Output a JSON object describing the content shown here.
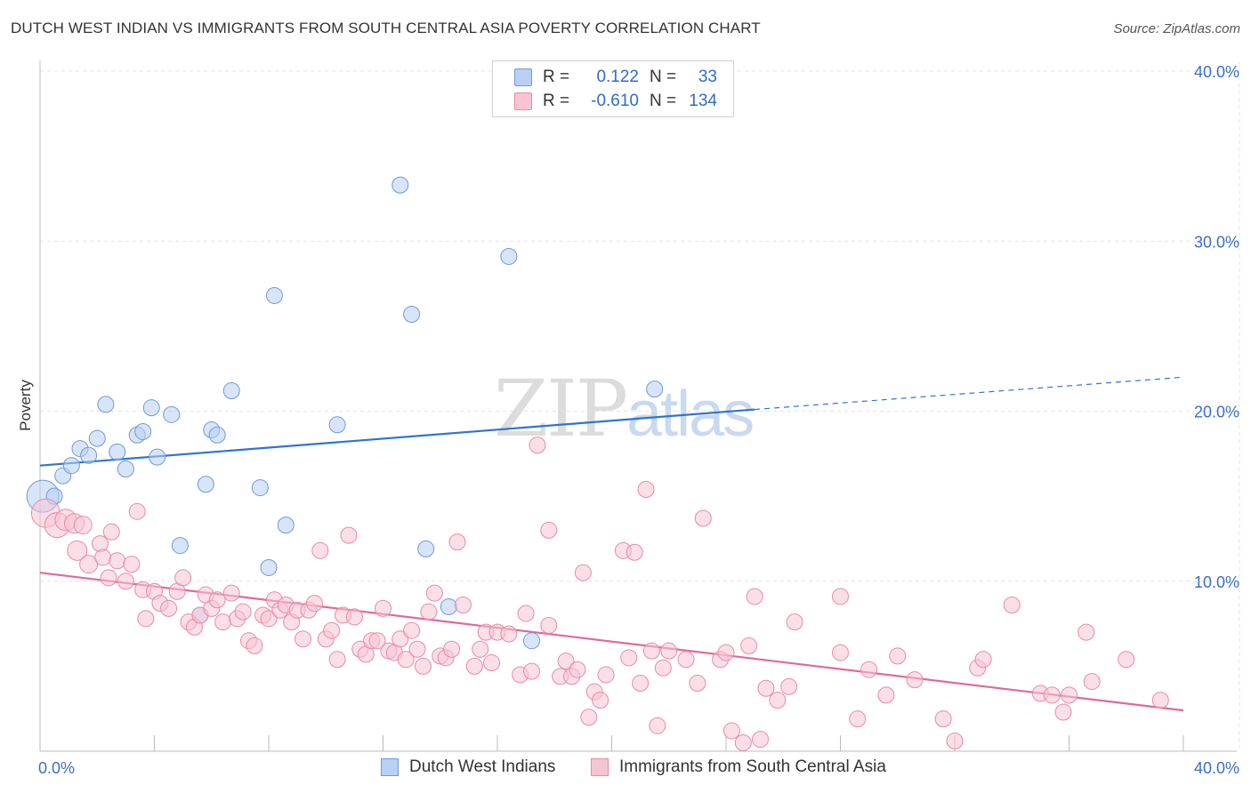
{
  "title": "DUTCH WEST INDIAN VS IMMIGRANTS FROM SOUTH CENTRAL ASIA POVERTY CORRELATION CHART",
  "source": "Source: ZipAtlas.com",
  "watermark": {
    "zip": "ZIP",
    "atlas": "atlas"
  },
  "colors": {
    "blue_fill": "#b8d0f3",
    "blue_stroke": "#6f9ad8",
    "blue_line": "#2f74d0",
    "pink_fill": "#f7c4d3",
    "pink_stroke": "#e88aa7",
    "pink_line": "#e0689a",
    "grid": "#e3e3e3",
    "axis": "#bbbbbb",
    "accent_text": "#2f6cc9"
  },
  "legend": {
    "rows": [
      {
        "series": "blue",
        "r_label": "R =",
        "r_value": "0.122",
        "n_label": "N =",
        "n_value": "33"
      },
      {
        "series": "pink",
        "r_label": "R =",
        "r_value": "-0.610",
        "n_label": "N =",
        "n_value": "134"
      }
    ]
  },
  "bottom_legend": [
    {
      "series": "blue",
      "label": "Dutch West Indians"
    },
    {
      "series": "pink",
      "label": "Immigrants from South Central Asia"
    }
  ],
  "chart_data": {
    "type": "scatter",
    "title": "DUTCH WEST INDIAN VS IMMIGRANTS FROM SOUTH CENTRAL ASIA POVERTY CORRELATION CHART",
    "xlabel": "",
    "ylabel": "Poverty",
    "xlim": [
      0,
      40
    ],
    "ylim": [
      0,
      40
    ],
    "x_tick_labels": [
      {
        "value": 0,
        "label": "0.0%"
      },
      {
        "value": 40,
        "label": "40.0%"
      }
    ],
    "x_minor_ticks": [
      4,
      8,
      12,
      16,
      20,
      24,
      28,
      32,
      36,
      40
    ],
    "y_tick_labels": [
      {
        "value": 10,
        "label": "10.0%"
      },
      {
        "value": 20,
        "label": "20.0%"
      },
      {
        "value": 30,
        "label": "30.0%"
      },
      {
        "value": 40,
        "label": "40.0%"
      }
    ],
    "grid": true,
    "series": [
      {
        "name": "Dutch West Indians",
        "color": "blue",
        "r": 0.122,
        "n": 33,
        "trend": {
          "x0": 0,
          "y0": 16.8,
          "x1": 25,
          "y1": 20.1,
          "dashed_to_x": 40,
          "dashed_to_y": 22.0
        },
        "points": [
          [
            0.1,
            15.0,
            18
          ],
          [
            0.5,
            15.0,
            9
          ],
          [
            0.8,
            16.2,
            9
          ],
          [
            1.1,
            16.8,
            9
          ],
          [
            1.4,
            17.8,
            9
          ],
          [
            1.7,
            17.4,
            9
          ],
          [
            2.0,
            18.4,
            9
          ],
          [
            2.3,
            20.4,
            9
          ],
          [
            2.7,
            17.6,
            9
          ],
          [
            3.0,
            16.6,
            9
          ],
          [
            3.4,
            18.6,
            9
          ],
          [
            3.6,
            18.8,
            9
          ],
          [
            3.9,
            20.2,
            9
          ],
          [
            4.1,
            17.3,
            9
          ],
          [
            4.6,
            19.8,
            9
          ],
          [
            4.9,
            12.1,
            9
          ],
          [
            5.6,
            8.0,
            9
          ],
          [
            5.8,
            15.7,
            9
          ],
          [
            6.0,
            18.9,
            9
          ],
          [
            6.2,
            18.6,
            9
          ],
          [
            6.7,
            21.2,
            9
          ],
          [
            7.7,
            15.5,
            9
          ],
          [
            8.0,
            10.8,
            9
          ],
          [
            8.2,
            26.8,
            9
          ],
          [
            8.6,
            13.3,
            9
          ],
          [
            10.4,
            19.2,
            9
          ],
          [
            12.6,
            33.3,
            9
          ],
          [
            13.0,
            25.7,
            9
          ],
          [
            13.5,
            11.9,
            9
          ],
          [
            14.3,
            8.5,
            9
          ],
          [
            16.4,
            29.1,
            9
          ],
          [
            17.2,
            6.5,
            9
          ],
          [
            21.5,
            21.3,
            9
          ]
        ]
      },
      {
        "name": "Immigrants from South Central Asia",
        "color": "pink",
        "r": -0.61,
        "n": 134,
        "trend": {
          "x0": 0,
          "y0": 10.5,
          "x1": 40,
          "y1": 2.4
        },
        "points": [
          [
            0.2,
            14.0,
            16
          ],
          [
            0.6,
            13.3,
            14
          ],
          [
            0.9,
            13.6,
            12
          ],
          [
            1.2,
            13.4,
            11
          ],
          [
            1.5,
            13.3,
            10
          ],
          [
            1.3,
            11.8,
            11
          ],
          [
            1.7,
            11.0,
            10
          ],
          [
            2.1,
            12.2,
            9
          ],
          [
            2.2,
            11.4,
            9
          ],
          [
            2.4,
            10.2,
            9
          ],
          [
            2.5,
            12.9,
            9
          ],
          [
            2.7,
            11.2,
            9
          ],
          [
            3.0,
            10.0,
            9
          ],
          [
            3.2,
            11.0,
            9
          ],
          [
            3.4,
            14.1,
            9
          ],
          [
            3.6,
            9.5,
            9
          ],
          [
            3.7,
            7.8,
            9
          ],
          [
            4.0,
            9.4,
            9
          ],
          [
            4.2,
            8.7,
            9
          ],
          [
            4.5,
            8.4,
            9
          ],
          [
            4.8,
            9.4,
            9
          ],
          [
            5.0,
            10.2,
            9
          ],
          [
            5.2,
            7.6,
            9
          ],
          [
            5.4,
            7.3,
            9
          ],
          [
            5.6,
            8.0,
            9
          ],
          [
            5.8,
            9.2,
            9
          ],
          [
            6.0,
            8.4,
            9
          ],
          [
            6.2,
            8.9,
            9
          ],
          [
            6.4,
            7.6,
            9
          ],
          [
            6.7,
            9.3,
            9
          ],
          [
            6.9,
            7.8,
            9
          ],
          [
            7.1,
            8.2,
            9
          ],
          [
            7.3,
            6.5,
            9
          ],
          [
            7.5,
            6.2,
            9
          ],
          [
            7.8,
            8.0,
            9
          ],
          [
            8.0,
            7.8,
            9
          ],
          [
            8.2,
            8.9,
            9
          ],
          [
            8.4,
            8.3,
            9
          ],
          [
            8.6,
            8.6,
            9
          ],
          [
            8.8,
            7.6,
            9
          ],
          [
            9.0,
            8.3,
            9
          ],
          [
            9.2,
            6.6,
            9
          ],
          [
            9.4,
            8.3,
            9
          ],
          [
            9.6,
            8.7,
            9
          ],
          [
            9.8,
            11.8,
            9
          ],
          [
            10.0,
            6.6,
            9
          ],
          [
            10.2,
            7.1,
            9
          ],
          [
            10.4,
            5.4,
            9
          ],
          [
            10.6,
            8.0,
            9
          ],
          [
            10.8,
            12.7,
            9
          ],
          [
            11.0,
            7.9,
            9
          ],
          [
            11.2,
            6.0,
            9
          ],
          [
            11.4,
            5.7,
            9
          ],
          [
            11.6,
            6.5,
            9
          ],
          [
            11.8,
            6.5,
            9
          ],
          [
            12.0,
            8.4,
            9
          ],
          [
            12.2,
            5.9,
            9
          ],
          [
            12.4,
            5.8,
            9
          ],
          [
            12.6,
            6.6,
            9
          ],
          [
            12.8,
            5.4,
            9
          ],
          [
            13.0,
            7.1,
            9
          ],
          [
            13.2,
            6.0,
            9
          ],
          [
            13.4,
            5.0,
            9
          ],
          [
            13.6,
            8.2,
            9
          ],
          [
            13.8,
            9.3,
            9
          ],
          [
            14.0,
            5.6,
            9
          ],
          [
            14.2,
            5.5,
            9
          ],
          [
            14.4,
            6.0,
            9
          ],
          [
            14.6,
            12.3,
            9
          ],
          [
            14.8,
            8.6,
            9
          ],
          [
            15.2,
            5.0,
            9
          ],
          [
            15.4,
            6.0,
            9
          ],
          [
            15.6,
            7.0,
            9
          ],
          [
            15.8,
            5.2,
            9
          ],
          [
            16.0,
            7.0,
            9
          ],
          [
            16.4,
            6.9,
            9
          ],
          [
            16.8,
            4.5,
            9
          ],
          [
            17.0,
            8.1,
            9
          ],
          [
            17.2,
            4.7,
            9
          ],
          [
            17.4,
            18.0,
            9
          ],
          [
            17.8,
            13.0,
            9
          ],
          [
            17.8,
            7.4,
            9
          ],
          [
            18.2,
            4.4,
            9
          ],
          [
            18.4,
            5.3,
            9
          ],
          [
            18.6,
            4.4,
            9
          ],
          [
            18.8,
            4.8,
            9
          ],
          [
            19.0,
            10.5,
            9
          ],
          [
            19.2,
            2.0,
            9
          ],
          [
            19.4,
            3.5,
            9
          ],
          [
            19.6,
            3.0,
            9
          ],
          [
            19.8,
            4.5,
            9
          ],
          [
            20.4,
            11.8,
            9
          ],
          [
            20.6,
            5.5,
            9
          ],
          [
            20.8,
            11.7,
            9
          ],
          [
            21.0,
            4.0,
            9
          ],
          [
            21.2,
            15.4,
            9
          ],
          [
            21.4,
            5.9,
            9
          ],
          [
            21.6,
            1.5,
            9
          ],
          [
            21.8,
            4.9,
            9
          ],
          [
            22.0,
            5.9,
            9
          ],
          [
            22.6,
            5.4,
            9
          ],
          [
            23.0,
            4.0,
            9
          ],
          [
            23.2,
            13.7,
            9
          ],
          [
            23.8,
            5.4,
            9
          ],
          [
            24.0,
            5.8,
            9
          ],
          [
            24.2,
            1.2,
            9
          ],
          [
            24.6,
            0.5,
            9
          ],
          [
            24.8,
            6.2,
            9
          ],
          [
            25.0,
            9.1,
            9
          ],
          [
            25.2,
            0.7,
            9
          ],
          [
            25.4,
            3.7,
            9
          ],
          [
            25.8,
            3.0,
            9
          ],
          [
            26.2,
            3.8,
            9
          ],
          [
            26.4,
            7.6,
            9
          ],
          [
            28.0,
            5.8,
            9
          ],
          [
            28.0,
            9.1,
            9
          ],
          [
            28.6,
            1.9,
            9
          ],
          [
            29.0,
            4.8,
            9
          ],
          [
            29.6,
            3.3,
            9
          ],
          [
            30.0,
            5.6,
            9
          ],
          [
            30.6,
            4.2,
            9
          ],
          [
            31.6,
            1.9,
            9
          ],
          [
            32.0,
            0.6,
            9
          ],
          [
            32.8,
            4.9,
            9
          ],
          [
            33.0,
            5.4,
            9
          ],
          [
            34.0,
            8.6,
            9
          ],
          [
            35.0,
            3.4,
            9
          ],
          [
            35.4,
            3.3,
            9
          ],
          [
            35.8,
            2.3,
            9
          ],
          [
            36.0,
            3.3,
            9
          ],
          [
            36.6,
            7.0,
            9
          ],
          [
            36.8,
            4.1,
            9
          ],
          [
            38.0,
            5.4,
            9
          ],
          [
            39.2,
            3.0,
            9
          ]
        ]
      }
    ]
  }
}
